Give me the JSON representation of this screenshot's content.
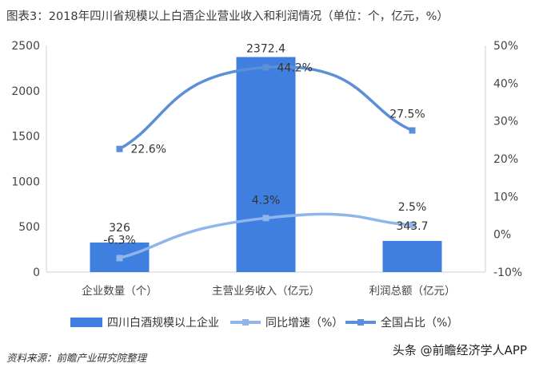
{
  "title": "图表3：2018年四川省规模以上白酒企业营业收入和利润情况（单位：个，亿元，%）",
  "source": "资料来源：前瞻产业研究院整理",
  "credit": "头条 @前瞻经济学人APP",
  "chart_data": {
    "type": "bar+line",
    "categories": [
      "企业数量（个）",
      "主营业务收入（亿元）",
      "利润总额（亿元）"
    ],
    "y_left": {
      "min": 0,
      "max": 2500,
      "ticks": [
        0,
        500,
        1000,
        1500,
        2000,
        2500
      ]
    },
    "y_right": {
      "min": -10,
      "max": 50,
      "ticks": [
        "-10%",
        "0%",
        "10%",
        "20%",
        "30%",
        "40%",
        "50%"
      ]
    },
    "bar_series": {
      "name": "四川白酒规模以上企业",
      "values": [
        326,
        2372.4,
        343.7
      ],
      "labels": [
        "326",
        "2372.4",
        "343.7"
      ],
      "color": "#3f7fe0"
    },
    "line_series": [
      {
        "name": "同比增速（%）",
        "values": [
          -6.3,
          4.3,
          2.5
        ],
        "labels": [
          "-6.3%",
          "4.3%",
          "2.5%"
        ],
        "color": "#8fb5ea"
      },
      {
        "name": "全国占比（%）",
        "values": [
          22.6,
          44.2,
          27.5
        ],
        "labels": [
          "22.6%",
          "44.2%",
          "27.5%"
        ],
        "color": "#5b8fd8"
      }
    ],
    "legend_position": "bottom",
    "grid": false
  }
}
